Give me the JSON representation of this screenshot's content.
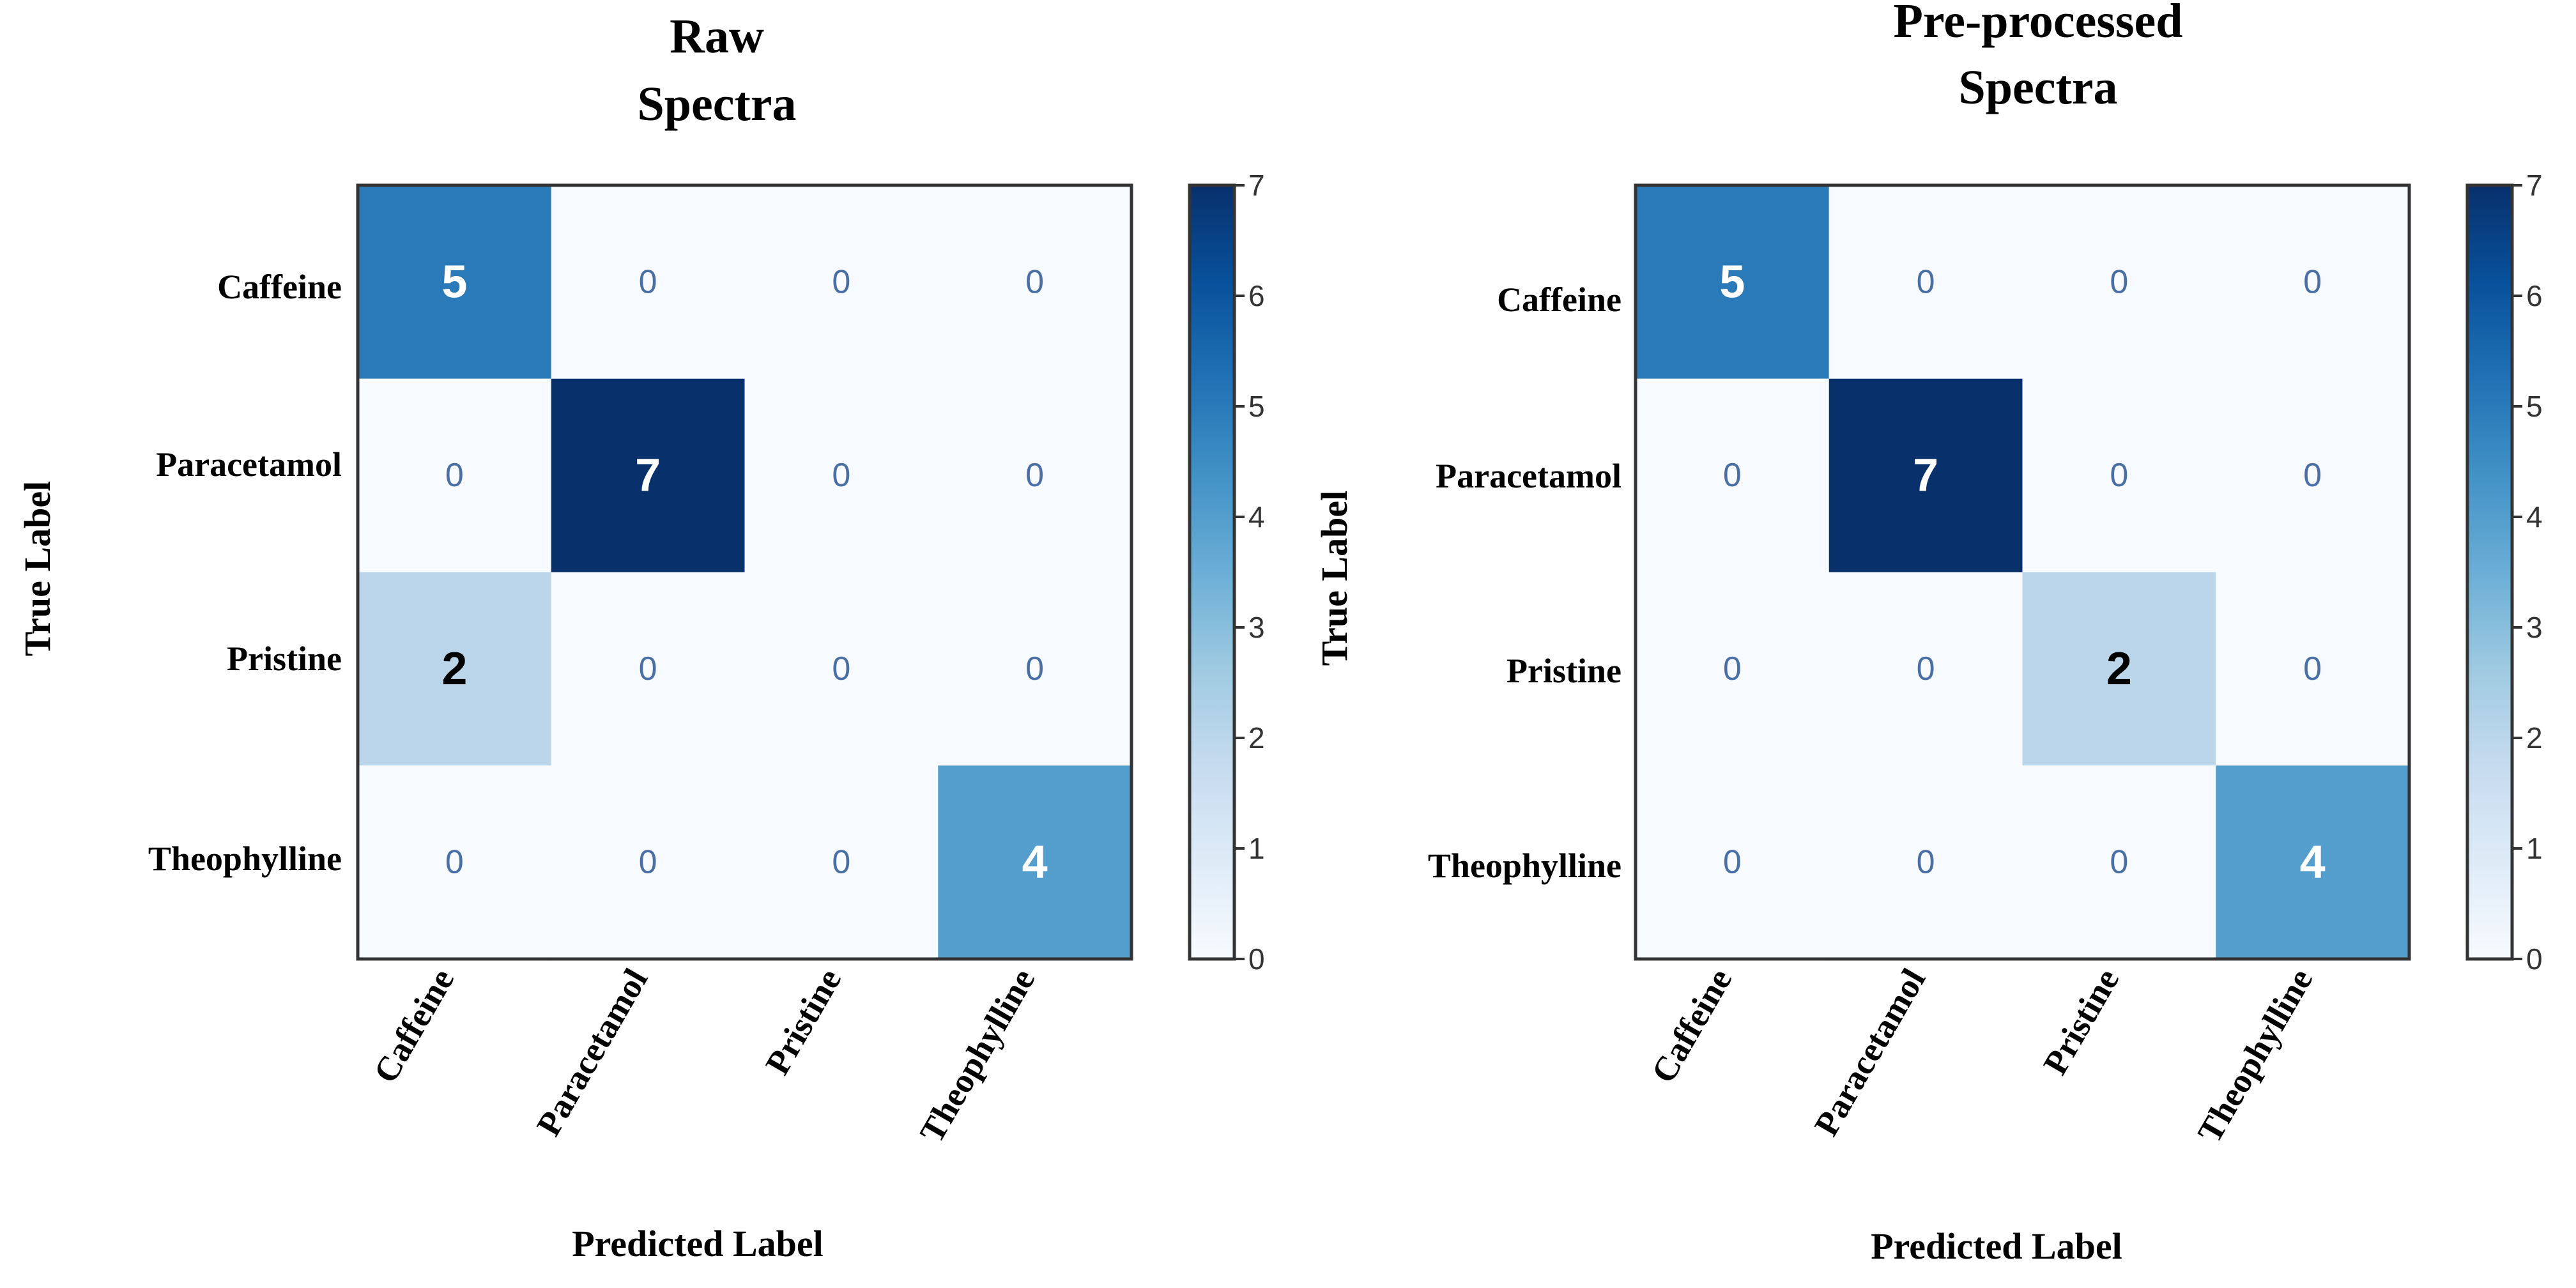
{
  "chart_data": [
    {
      "type": "heatmap",
      "title_lines": [
        "Raw",
        "Spectra"
      ],
      "xlabel": "Predicted Label",
      "ylabel": "True Label",
      "x_categories": [
        "Caffeine",
        "Paracetamol",
        "Pristine",
        "Theophylline"
      ],
      "y_categories": [
        "Caffeine",
        "Paracetamol",
        "Pristine",
        "Theophylline"
      ],
      "matrix": [
        [
          5,
          0,
          0,
          0
        ],
        [
          0,
          7,
          0,
          0
        ],
        [
          2,
          0,
          0,
          0
        ],
        [
          0,
          0,
          0,
          4
        ]
      ],
      "colorbar": {
        "min": 0,
        "max": 7,
        "ticks": [
          0,
          1,
          2,
          3,
          4,
          5,
          6,
          7
        ]
      },
      "colormap": "Blues"
    },
    {
      "type": "heatmap",
      "title_lines": [
        "Pre-processed",
        "Spectra"
      ],
      "xlabel": "Predicted Label",
      "ylabel": "True Label",
      "x_categories": [
        "Caffeine",
        "Paracetamol",
        "Pristine",
        "Theophylline"
      ],
      "y_categories": [
        "Caffeine",
        "Paracetamol",
        "Pristine",
        "Theophylline"
      ],
      "matrix": [
        [
          5,
          0,
          0,
          0
        ],
        [
          0,
          7,
          0,
          0
        ],
        [
          0,
          0,
          2,
          0
        ],
        [
          0,
          0,
          0,
          4
        ]
      ],
      "colorbar": {
        "min": 0,
        "max": 7,
        "ticks": [
          0,
          1,
          2,
          3,
          4,
          5,
          6,
          7
        ]
      },
      "colormap": "Blues"
    }
  ],
  "colors": {
    "zero_cell": "#f7fbff",
    "zero_text": "#4a6fa5",
    "dark_text": "#ffffff",
    "light_text": "#000000",
    "frame": "#333333"
  }
}
